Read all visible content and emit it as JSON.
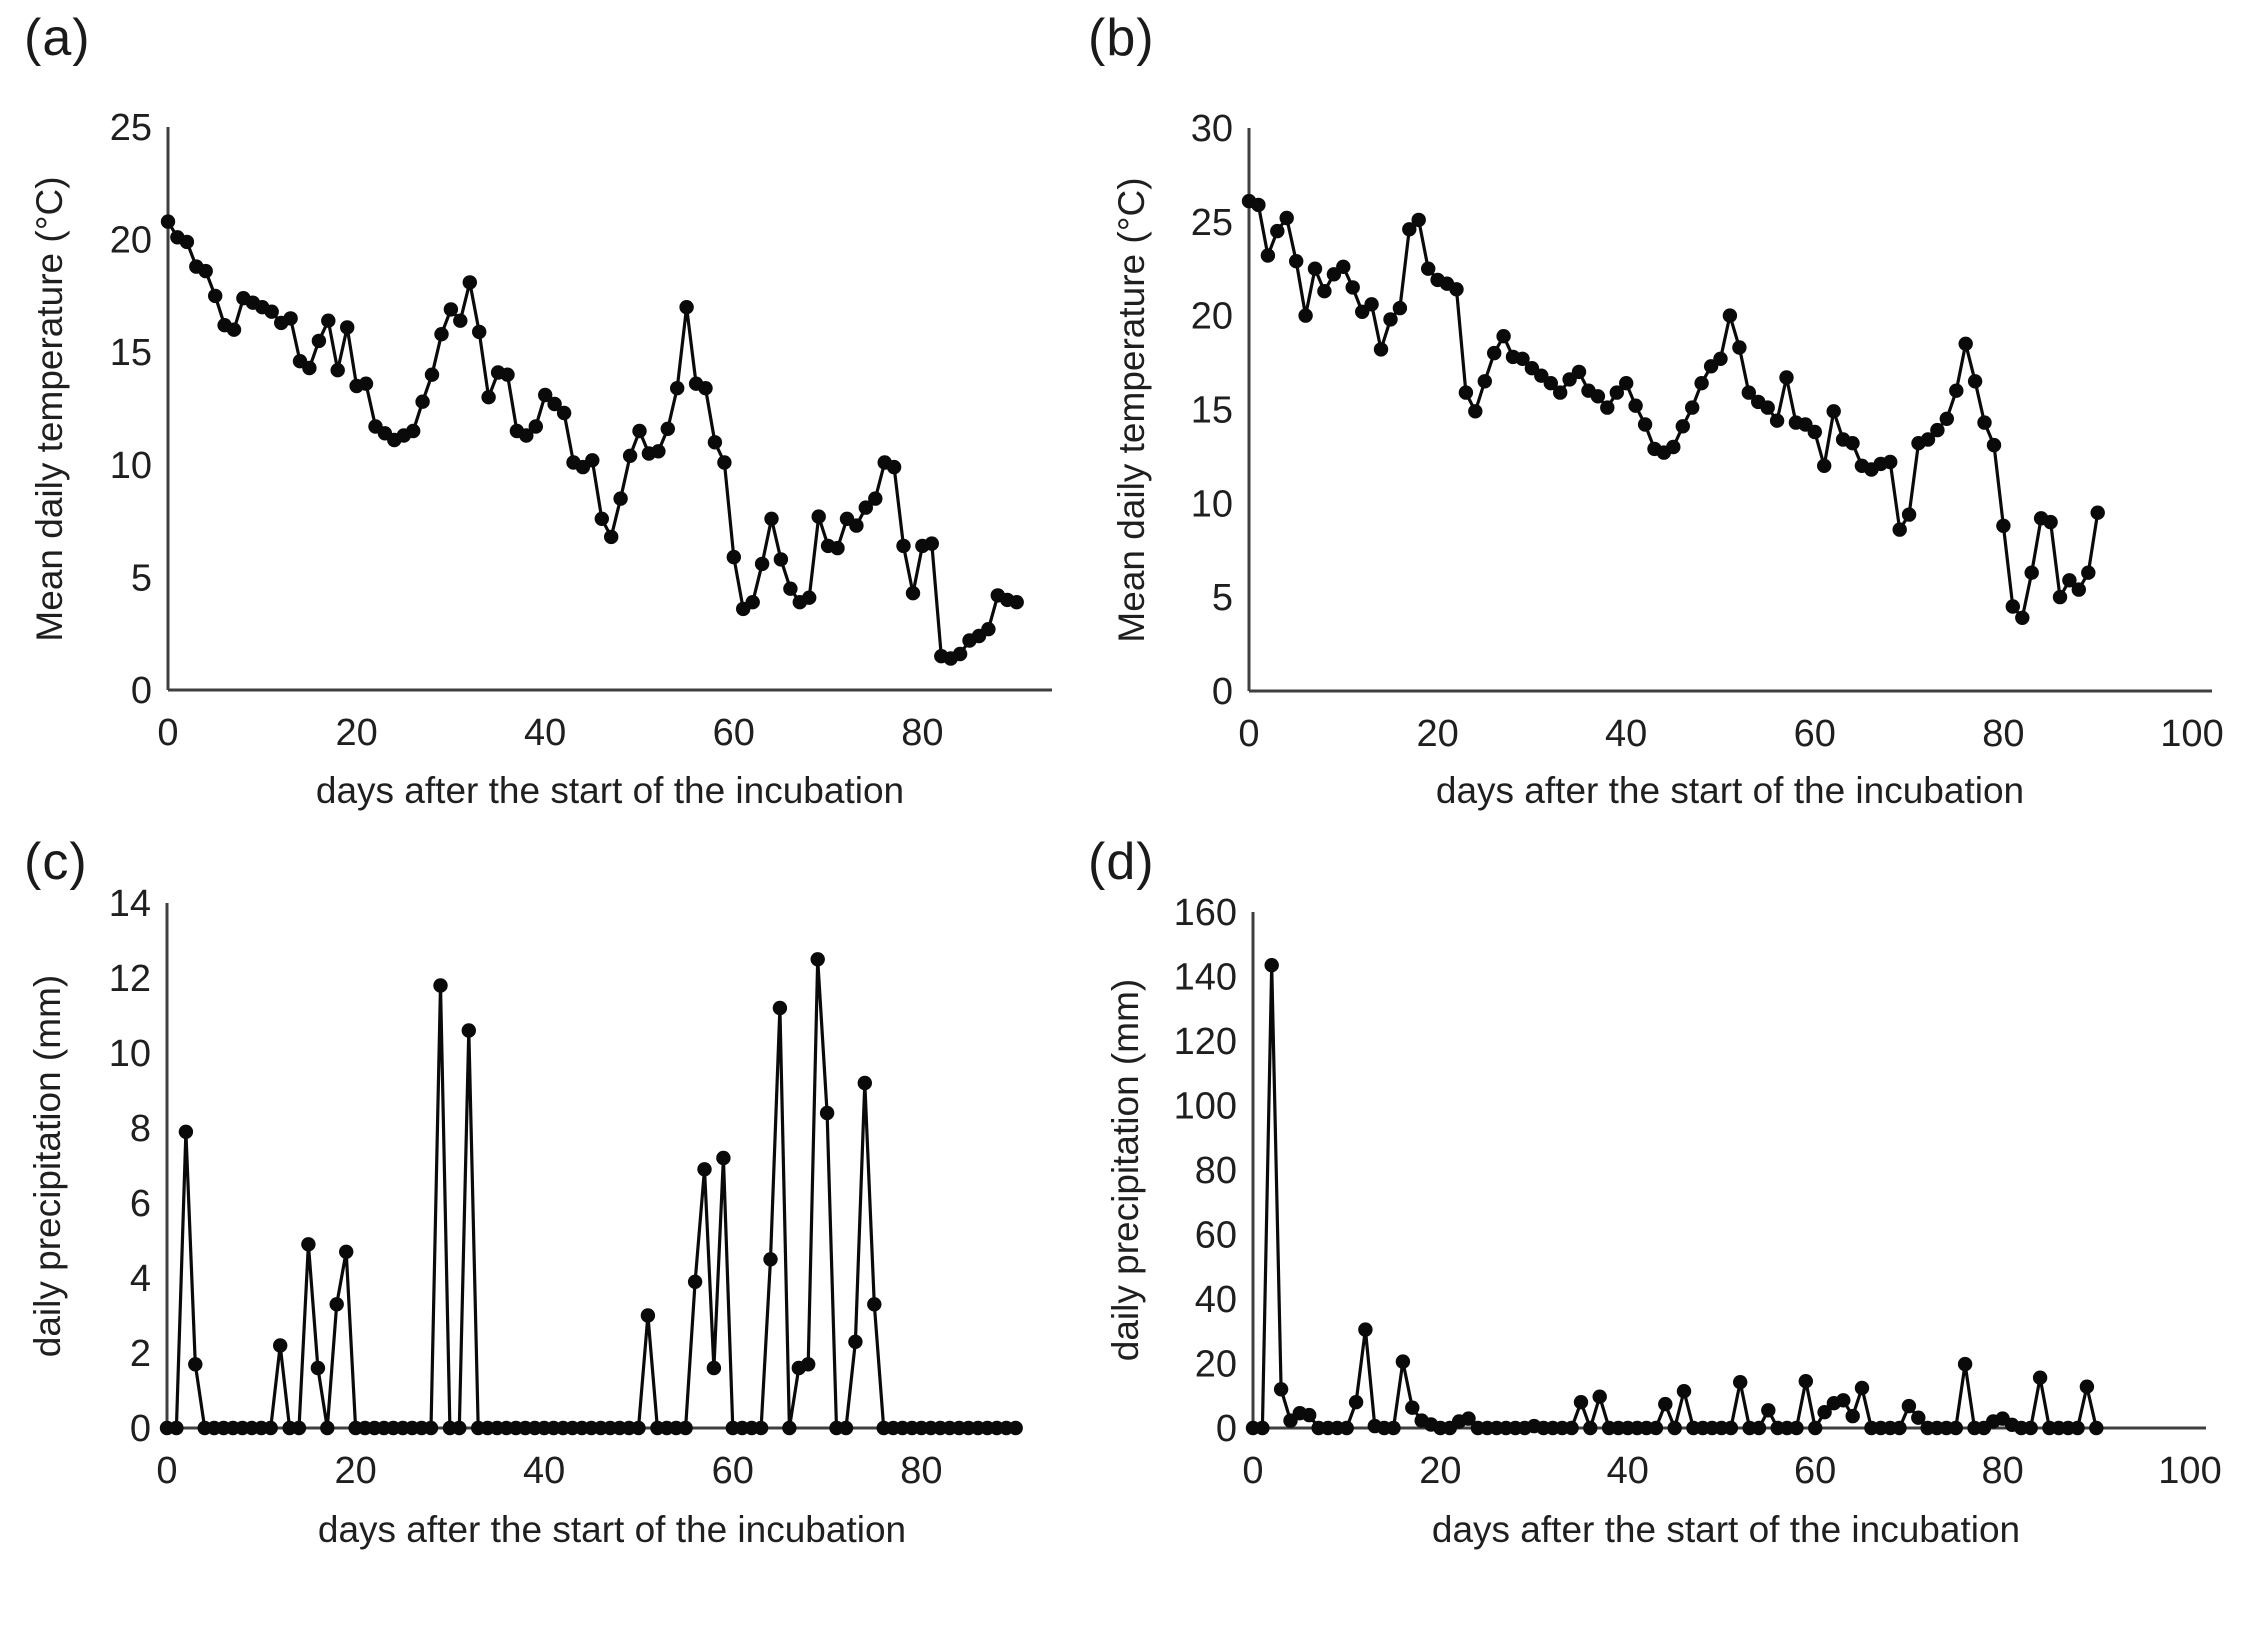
{
  "figure_caption": "",
  "panel_letters": {
    "a": "(a)",
    "b": "(b)",
    "c": "(c)",
    "d": "(d)"
  },
  "colors": {
    "series": "#0a0a0a",
    "axis": "#3f3f3f",
    "text": "#1f1f1f"
  },
  "chart_data": [
    {
      "id": "a",
      "panel_label": "(a)",
      "type": "line",
      "marker": "filled-circle",
      "xlabel": "days after the start of the incubation",
      "ylabel": "Mean daily temperature (°C)",
      "xlim": [
        0,
        94
      ],
      "ylim": [
        0,
        25
      ],
      "xticks": [
        0,
        20,
        40,
        60,
        80
      ],
      "yticks": [
        0,
        5,
        10,
        15,
        20,
        25
      ],
      "grid": false,
      "legend": null,
      "x_start": 0,
      "x_step": 1,
      "values": [
        20.8,
        20.1,
        19.9,
        18.8,
        18.6,
        17.5,
        16.2,
        16.0,
        17.4,
        17.2,
        17.0,
        16.8,
        16.3,
        16.5,
        14.6,
        14.3,
        15.5,
        16.4,
        14.2,
        16.1,
        13.5,
        13.6,
        11.7,
        11.4,
        11.1,
        11.3,
        11.5,
        12.8,
        14.0,
        15.8,
        16.9,
        16.4,
        18.1,
        15.9,
        13.0,
        14.1,
        14.0,
        11.5,
        11.3,
        11.7,
        13.1,
        12.7,
        12.3,
        10.1,
        9.9,
        10.2,
        7.6,
        6.8,
        8.5,
        10.4,
        11.5,
        10.5,
        10.6,
        11.6,
        13.4,
        17.0,
        13.6,
        13.4,
        11.0,
        10.1,
        5.9,
        3.6,
        3.9,
        5.6,
        7.6,
        5.8,
        4.5,
        3.9,
        4.1,
        7.7,
        6.4,
        6.3,
        7.6,
        7.3,
        8.1,
        8.5,
        10.1,
        9.9,
        6.4,
        4.3,
        6.4,
        6.5,
        1.5,
        1.4,
        1.6,
        2.2,
        2.4,
        2.7,
        4.2,
        4.0,
        3.9
      ]
    },
    {
      "id": "b",
      "panel_label": "(b)",
      "type": "line",
      "marker": "filled-circle",
      "xlabel": "days after the start of the incubation",
      "ylabel": "Mean daily temperature (°C)",
      "xlim": [
        0,
        102
      ],
      "ylim": [
        0,
        30
      ],
      "xticks": [
        0,
        20,
        40,
        60,
        80,
        100
      ],
      "yticks": [
        0,
        5,
        10,
        15,
        20,
        25,
        30
      ],
      "grid": false,
      "legend": null,
      "x_start": 0,
      "x_step": 1,
      "values": [
        26.1,
        25.9,
        23.2,
        24.5,
        25.2,
        22.9,
        20.0,
        22.5,
        21.3,
        22.2,
        22.6,
        21.5,
        20.2,
        20.6,
        18.2,
        19.8,
        20.4,
        24.6,
        25.1,
        22.5,
        21.9,
        21.7,
        21.4,
        15.9,
        14.9,
        16.5,
        18.0,
        18.9,
        17.8,
        17.7,
        17.2,
        16.8,
        16.4,
        15.9,
        16.6,
        17.0,
        16.0,
        15.7,
        15.1,
        15.9,
        16.4,
        15.2,
        14.2,
        12.9,
        12.7,
        13.0,
        14.1,
        15.1,
        16.4,
        17.3,
        17.7,
        20.0,
        18.3,
        15.9,
        15.4,
        15.1,
        14.4,
        16.7,
        14.3,
        14.2,
        13.8,
        12.0,
        14.9,
        13.4,
        13.2,
        12.0,
        11.8,
        12.1,
        12.2,
        8.6,
        9.4,
        13.2,
        13.4,
        13.9,
        14.5,
        16.0,
        18.5,
        16.5,
        14.3,
        13.1,
        8.8,
        4.5,
        3.9,
        6.3,
        9.2,
        9.0,
        5.0,
        5.9,
        5.4,
        6.3,
        9.5
      ]
    },
    {
      "id": "c",
      "panel_label": "(c)",
      "type": "line",
      "marker": "filled-circle",
      "xlabel": "days after the start of the incubation",
      "ylabel": "daily precipitation (mm)",
      "xlim": [
        0,
        90
      ],
      "ylim": [
        0,
        14
      ],
      "xticks": [
        0,
        20,
        40,
        60,
        80
      ],
      "yticks": [
        0,
        2,
        4,
        6,
        8,
        10,
        12,
        14
      ],
      "grid": false,
      "legend": null,
      "x_start": 0,
      "x_step": 1,
      "values": [
        0,
        0,
        7.9,
        1.7,
        0,
        0,
        0,
        0,
        0,
        0,
        0,
        0,
        2.2,
        0,
        0,
        4.9,
        1.6,
        0,
        3.3,
        4.7,
        0,
        0,
        0,
        0,
        0,
        0,
        0,
        0,
        0,
        11.8,
        0,
        0,
        10.6,
        0,
        0,
        0,
        0,
        0,
        0,
        0,
        0,
        0,
        0,
        0,
        0,
        0,
        0,
        0,
        0,
        0,
        0,
        3.0,
        0,
        0,
        0,
        0,
        3.9,
        6.9,
        1.6,
        7.2,
        0,
        0,
        0,
        0,
        4.5,
        11.2,
        0,
        1.6,
        1.7,
        12.5,
        8.4,
        0,
        0,
        2.3,
        9.2,
        3.3,
        0,
        0,
        0,
        0,
        0,
        0,
        0,
        0,
        0,
        0,
        0,
        0,
        0,
        0,
        0
      ]
    },
    {
      "id": "d",
      "panel_label": "(d)",
      "type": "line",
      "marker": "filled-circle",
      "xlabel": "days after the start of the incubation",
      "ylabel": "daily precipitation (mm)",
      "xlim": [
        0,
        102
      ],
      "ylim": [
        0,
        160
      ],
      "xticks": [
        0,
        20,
        40,
        60,
        80,
        100
      ],
      "yticks": [
        0,
        20,
        40,
        60,
        80,
        100,
        120,
        140,
        160
      ],
      "grid": false,
      "legend": null,
      "x_start": 0,
      "x_step": 1,
      "values": [
        0,
        0,
        143.5,
        12,
        2.3,
        4.6,
        4.0,
        0,
        0,
        0,
        0,
        8.0,
        30.5,
        0.6,
        0,
        0,
        20.6,
        6.3,
        2.3,
        1.1,
        0,
        0,
        2.0,
        2.9,
        0,
        0,
        0,
        0,
        0,
        0,
        0.6,
        0,
        0,
        0,
        0,
        8.0,
        0,
        9.7,
        0,
        0,
        0,
        0,
        0,
        0,
        7.4,
        0,
        11.4,
        0,
        0,
        0,
        0,
        0,
        14.2,
        0,
        0,
        5.5,
        0,
        0,
        0,
        14.5,
        0,
        4.9,
        7.7,
        8.6,
        3.7,
        12.4,
        0,
        0,
        0,
        0,
        6.8,
        3.2,
        0,
        0,
        0,
        0,
        19.8,
        0,
        0,
        2.0,
        2.9,
        1.0,
        0,
        0,
        15.6,
        0,
        0,
        0,
        0,
        12.8,
        0
      ]
    }
  ]
}
